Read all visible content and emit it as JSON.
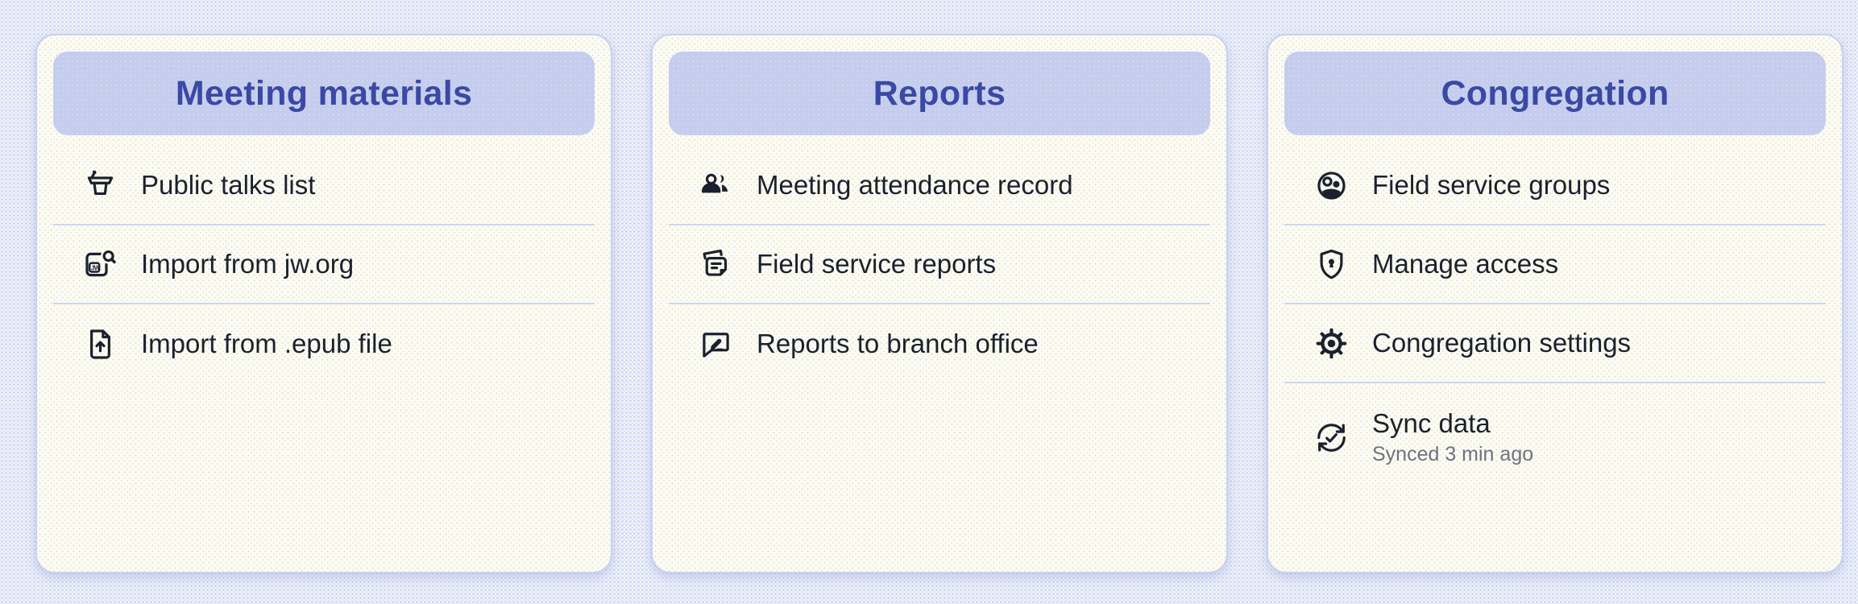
{
  "colors": {
    "page_bg": "#eef1fa",
    "card_bg": "#fdfcf3",
    "card_border": "#c7d2f0",
    "header_bg": "#c2cdf2",
    "header_text": "#3a49a3",
    "item_text": "#1b212c",
    "subtitle_text": "#6d7380",
    "divider": "#ccd6f1"
  },
  "cards": [
    {
      "title": "Meeting materials",
      "items": [
        {
          "label": "Public talks list",
          "icon": "lectern-icon"
        },
        {
          "label": "Import from jw.org",
          "icon": "jw-search-icon"
        },
        {
          "label": "Import from .epub file",
          "icon": "file-upload-icon"
        }
      ]
    },
    {
      "title": "Reports",
      "items": [
        {
          "label": "Meeting attendance record",
          "icon": "people-icon"
        },
        {
          "label": "Field service reports",
          "icon": "notes-icon"
        },
        {
          "label": "Reports to branch office",
          "icon": "message-edit-icon"
        }
      ]
    },
    {
      "title": "Congregation",
      "items": [
        {
          "label": "Field service groups",
          "icon": "group-circle-icon"
        },
        {
          "label": "Manage access",
          "icon": "shield-lock-icon"
        },
        {
          "label": "Congregation settings",
          "icon": "gear-icon"
        },
        {
          "label": "Sync data",
          "subtitle": "Synced 3 min ago",
          "icon": "sync-icon"
        }
      ]
    }
  ]
}
